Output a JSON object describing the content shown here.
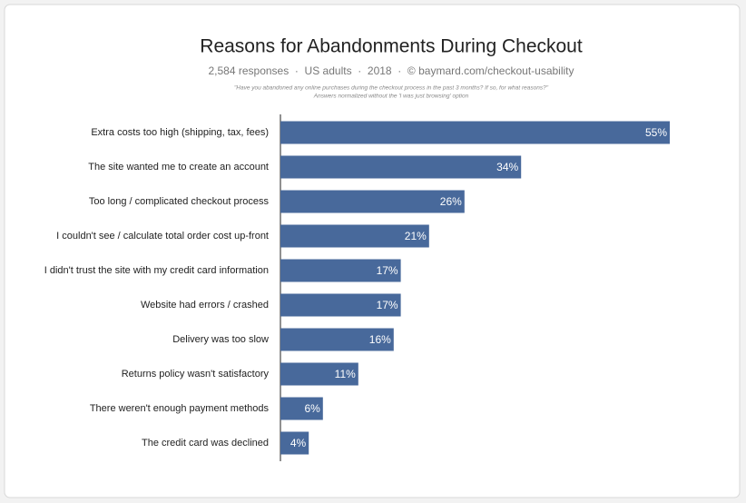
{
  "chart_data": {
    "type": "bar",
    "orientation": "horizontal",
    "title": "Reasons for Abandonments During Checkout",
    "subtitle": "2,584 responses  ·  US adults  ·  2018  ·  © baymard.com/checkout-usability",
    "notes": [
      "\"Have you abandoned any online purchases during the checkout process in the past 3 months? If so, for what reasons?\"",
      "Answers normalized without the 'I was just browsing' option"
    ],
    "categories": [
      "Extra costs too high (shipping, tax, fees)",
      "The site wanted me to create an account",
      "Too long / complicated checkout process",
      "I couldn't see / calculate total order cost up-front",
      "I didn't trust the site with my credit card information",
      "Website had errors / crashed",
      "Delivery was too slow",
      "Returns policy wasn't satisfactory",
      "There weren't enough payment methods",
      "The credit card was declined"
    ],
    "values": [
      55,
      34,
      26,
      21,
      17,
      17,
      16,
      11,
      6,
      4
    ],
    "value_labels": [
      "55%",
      "34%",
      "26%",
      "21%",
      "17%",
      "17%",
      "16%",
      "11%",
      "6%",
      "4%"
    ],
    "color": "#48699b"
  }
}
